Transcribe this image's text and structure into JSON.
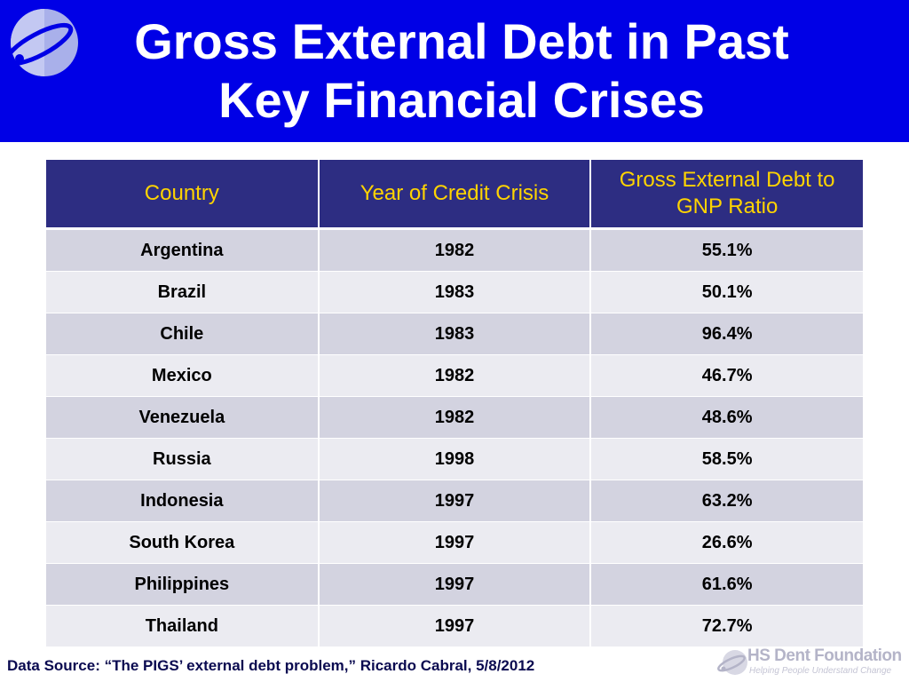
{
  "header": {
    "title_line1": "Gross External Debt in Past",
    "title_line2": "Key Financial Crises",
    "background_color": "#0000e6"
  },
  "table": {
    "columns": [
      "Country",
      "Year of Credit Crisis",
      "Gross External Debt to GNP Ratio"
    ],
    "rows": [
      {
        "country": "Argentina",
        "year": "1982",
        "ratio": "55.1%"
      },
      {
        "country": "Brazil",
        "year": "1983",
        "ratio": "50.1%"
      },
      {
        "country": "Chile",
        "year": "1983",
        "ratio": "96.4%"
      },
      {
        "country": "Mexico",
        "year": "1982",
        "ratio": "46.7%"
      },
      {
        "country": "Venezuela",
        "year": "1982",
        "ratio": "48.6%"
      },
      {
        "country": "Russia",
        "year": "1998",
        "ratio": "58.5%"
      },
      {
        "country": "Indonesia",
        "year": "1997",
        "ratio": "63.2%"
      },
      {
        "country": "South Korea",
        "year": "1997",
        "ratio": "26.6%"
      },
      {
        "country": "Philippines",
        "year": "1997",
        "ratio": "61.6%"
      },
      {
        "country": "Thailand",
        "year": "1997",
        "ratio": "72.7%"
      }
    ],
    "header_bg": "#2d2d82",
    "header_text_color": "#ffd400"
  },
  "footer": {
    "source": "Data Source: “The PIGS’ external debt problem,” Ricardo Cabral, 5/8/2012",
    "brand_name": "HS Dent Foundation",
    "brand_tagline": "Helping People Understand Change",
    "logo_icon": "orbit-logo-icon"
  }
}
